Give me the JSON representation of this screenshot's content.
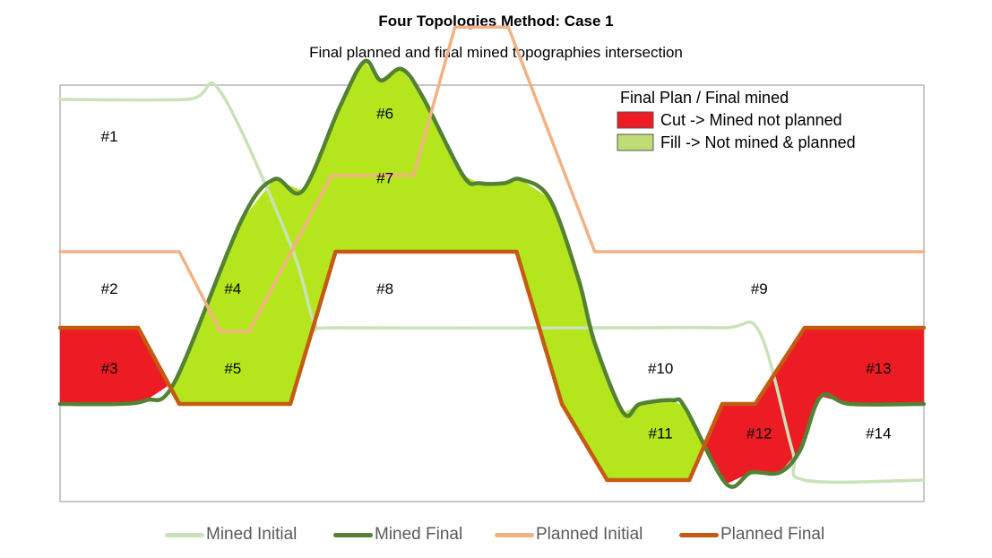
{
  "title": "Four Topologies Method: Case 1",
  "subtitle": "Final planned and final mined topographies intersection",
  "chart_data": {
    "type": "line",
    "title": "Four Topologies Method: Case 1",
    "subtitle": "Final planned and final mined topographies intersection",
    "axes_visible": false,
    "grid": false,
    "series": [
      {
        "name": "Mined Initial",
        "color": "#c9e2b8",
        "points": [
          [
            0,
            4
          ],
          [
            1.55,
            4
          ],
          [
            1.95,
            4.1
          ],
          [
            2.8,
            2.1
          ],
          [
            3.1,
            1.05
          ],
          [
            3.35,
            1
          ],
          [
            6.5,
            1
          ],
          [
            8.05,
            1
          ],
          [
            8.5,
            0.95
          ],
          [
            8.9,
            -0.6
          ],
          [
            9.05,
            -1
          ],
          [
            10.5,
            -1
          ]
        ]
      },
      {
        "name": "Mined Final",
        "color": "#548235",
        "points": [
          [
            0,
            0
          ],
          [
            0.7,
            0
          ],
          [
            1.05,
            0.05
          ],
          [
            1.4,
            0.3
          ],
          [
            2.2,
            2.4
          ],
          [
            2.6,
            2.95
          ],
          [
            2.95,
            2.8
          ],
          [
            3.4,
            3.9
          ],
          [
            3.7,
            4.5
          ],
          [
            3.9,
            4.25
          ],
          [
            4.15,
            4.4
          ],
          [
            4.4,
            4.05
          ],
          [
            4.9,
            3
          ],
          [
            5.1,
            2.9
          ],
          [
            5.4,
            2.9
          ],
          [
            5.6,
            2.95
          ],
          [
            5.95,
            2.7
          ],
          [
            6.3,
            1.65
          ],
          [
            6.5,
            0.8
          ],
          [
            6.85,
            -0.12
          ],
          [
            7.05,
            0
          ],
          [
            7.45,
            0.05
          ],
          [
            7.6,
            -0.05
          ],
          [
            8.1,
            -1.05
          ],
          [
            8.4,
            -0.9
          ],
          [
            8.75,
            -0.9
          ],
          [
            9,
            -0.6
          ],
          [
            9.25,
            0.1
          ],
          [
            9.6,
            0
          ],
          [
            10.5,
            0
          ]
        ]
      },
      {
        "name": "Planned Initial",
        "color": "#f4b183",
        "points": [
          [
            0,
            2
          ],
          [
            1.45,
            2
          ],
          [
            1.95,
            0.95
          ],
          [
            2.3,
            0.95
          ],
          [
            3.3,
            3
          ],
          [
            4.3,
            3
          ],
          [
            4.8,
            4.95
          ],
          [
            5.45,
            4.95
          ],
          [
            6.5,
            2
          ],
          [
            10.5,
            2
          ]
        ]
      },
      {
        "name": "Planned Final",
        "color": "#c55a11",
        "points": [
          [
            0,
            1
          ],
          [
            0.95,
            1
          ],
          [
            1.45,
            0
          ],
          [
            2.8,
            0
          ],
          [
            3.35,
            2
          ],
          [
            5.55,
            2
          ],
          [
            6.1,
            0
          ],
          [
            6.65,
            -1
          ],
          [
            7.65,
            -1
          ],
          [
            8.05,
            0
          ],
          [
            8.45,
            0
          ],
          [
            9.05,
            1
          ],
          [
            10.5,
            1
          ]
        ]
      }
    ],
    "fill_legend_title": "Final Plan / Final mined",
    "fill_legend": [
      {
        "label": "Cut -> Mined not planned",
        "color": "#ed1c24"
      },
      {
        "label": "Fill -> Not mined & planned",
        "color": "#bfdc75"
      }
    ],
    "fill_color": "#b5e61d",
    "cut_color": "#ed1c24",
    "region_labels": [
      {
        "label": "#1",
        "x": 0.6,
        "y": 3.5
      },
      {
        "label": "#2",
        "x": 0.6,
        "y": 1.5
      },
      {
        "label": "#3",
        "x": 0.6,
        "y": 0.45
      },
      {
        "label": "#4",
        "x": 2.1,
        "y": 1.5
      },
      {
        "label": "#5",
        "x": 2.1,
        "y": 0.45
      },
      {
        "label": "#6",
        "x": 3.95,
        "y": 3.8
      },
      {
        "label": "#7",
        "x": 3.95,
        "y": 2.95
      },
      {
        "label": "#8",
        "x": 3.95,
        "y": 1.5
      },
      {
        "label": "#9",
        "x": 8.5,
        "y": 1.5
      },
      {
        "label": "#10",
        "x": 7.3,
        "y": 0.45
      },
      {
        "label": "#11",
        "x": 7.3,
        "y": -0.4
      },
      {
        "label": "#12",
        "x": 8.5,
        "y": -0.4
      },
      {
        "label": "#13",
        "x": 9.95,
        "y": 0.45
      },
      {
        "label": "#14",
        "x": 9.95,
        "y": -0.4
      }
    ]
  }
}
